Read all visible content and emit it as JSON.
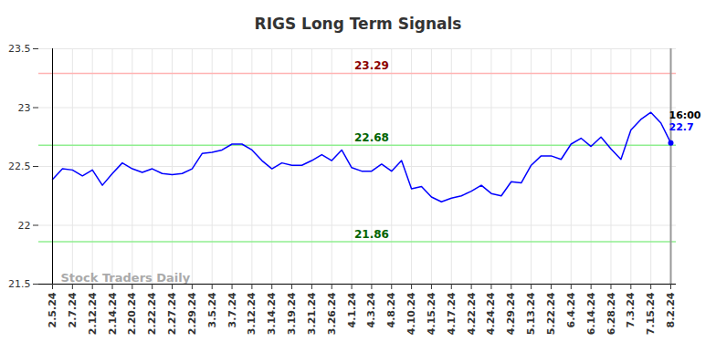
{
  "chart_data": {
    "type": "line",
    "title": "RIGS Long Term Signals",
    "categories": [
      "2.5.24",
      null,
      "2.7.24",
      null,
      "2.12.24",
      null,
      "2.14.24",
      null,
      "2.20.24",
      null,
      "2.22.24",
      null,
      "2.27.24",
      null,
      "2.29.24",
      null,
      "3.5.24",
      null,
      "3.7.24",
      null,
      "3.12.24",
      null,
      "3.14.24",
      null,
      "3.19.24",
      null,
      "3.21.24",
      null,
      "3.26.24",
      null,
      "4.1.24",
      null,
      "4.3.24",
      null,
      "4.8.24",
      null,
      "4.10.24",
      null,
      "4.15.24",
      null,
      "4.17.24",
      null,
      "4.22.24",
      null,
      "4.24.24",
      null,
      "4.29.24",
      null,
      "5.13.24",
      null,
      "5.22.24",
      null,
      "6.4.24",
      null,
      "6.14.24",
      null,
      "6.28.24",
      null,
      "7.3.24",
      null,
      "7.15.24",
      null,
      "8.2.24"
    ],
    "values": [
      22.39,
      22.48,
      22.47,
      22.42,
      22.47,
      22.34,
      22.44,
      22.53,
      22.48,
      22.45,
      22.48,
      22.44,
      22.43,
      22.44,
      22.48,
      22.61,
      22.62,
      22.64,
      22.69,
      22.69,
      22.64,
      22.55,
      22.48,
      22.53,
      22.51,
      22.51,
      22.55,
      22.6,
      22.55,
      22.64,
      22.49,
      22.46,
      22.46,
      22.52,
      22.46,
      22.55,
      22.31,
      22.33,
      22.24,
      22.2,
      22.23,
      22.25,
      22.29,
      22.34,
      22.27,
      22.25,
      22.37,
      22.36,
      22.51,
      22.59,
      22.59,
      22.56,
      22.69,
      22.74,
      22.67,
      22.75,
      22.65,
      22.56,
      22.81,
      22.9,
      22.96,
      22.87,
      22.7
    ],
    "color": "#0000ff",
    "ylim": [
      21.5,
      23.5
    ],
    "yticks": [
      21.5,
      22,
      22.5,
      23,
      23.5
    ],
    "grid": true,
    "annotations": {
      "signals": [
        {
          "value": 23.29,
          "label": "23.29",
          "color": "#ffb3b3",
          "text_color": "#8b0000"
        },
        {
          "value": 22.68,
          "label": "22.68",
          "color": "#90ee90",
          "text_color": "#006400"
        },
        {
          "value": 21.86,
          "label": "21.86",
          "color": "#90ee90",
          "text_color": "#006400"
        }
      ],
      "last_point": {
        "time": "16:00",
        "label": "22.7"
      },
      "watermark": "Stock Traders Daily"
    }
  }
}
